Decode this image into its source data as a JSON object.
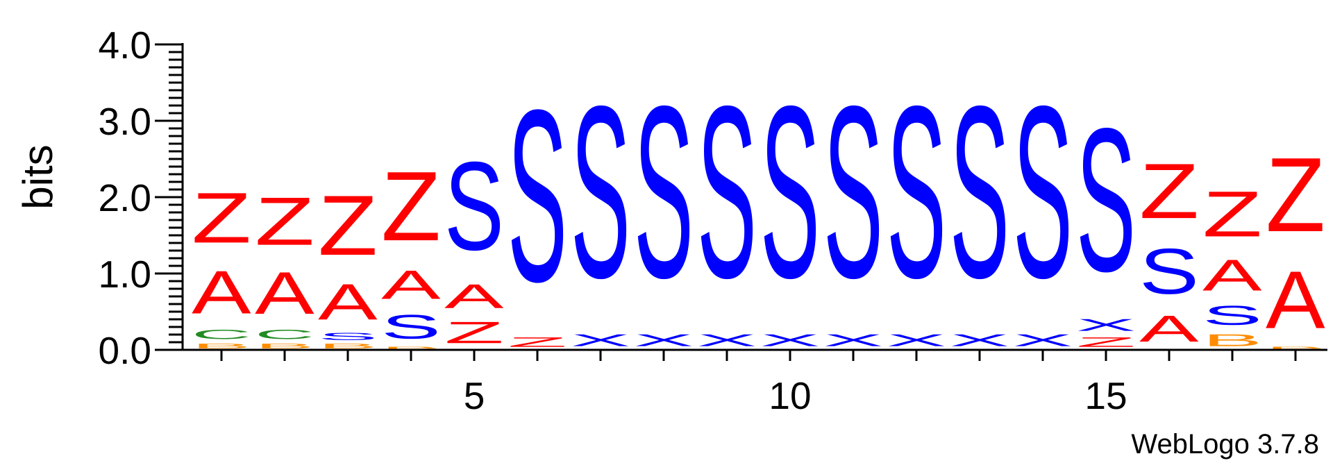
{
  "chart_data": {
    "type": "sequence-logo",
    "ylabel": "bits",
    "ylim": [
      0,
      4.0
    ],
    "yticks": [
      "0.0",
      "1.0",
      "2.0",
      "3.0",
      "4.0"
    ],
    "xticks": [
      "5",
      "10",
      "15"
    ],
    "positions": [
      {
        "x": 1,
        "stack": [
          [
            "B",
            0.1
          ],
          [
            "C",
            0.2
          ],
          [
            "A",
            0.9
          ],
          [
            "Z",
            1.05
          ]
        ]
      },
      {
        "x": 2,
        "stack": [
          [
            "B",
            0.1
          ],
          [
            "C",
            0.2
          ],
          [
            "A",
            0.88
          ],
          [
            "Z",
            1.0
          ]
        ]
      },
      {
        "x": 3,
        "stack": [
          [
            "B",
            0.1
          ],
          [
            "S",
            0.15
          ],
          [
            "A",
            0.75
          ],
          [
            "Z",
            1.25
          ]
        ]
      },
      {
        "x": 4,
        "stack": [
          [
            "B",
            0.05
          ],
          [
            "S",
            0.5
          ],
          [
            "A",
            0.6
          ],
          [
            "Z",
            1.45
          ]
        ]
      },
      {
        "x": 5,
        "stack": [
          [
            "Z",
            0.45
          ],
          [
            "A",
            0.5
          ],
          [
            "S",
            1.85
          ]
        ]
      },
      {
        "x": 6,
        "stack": [
          [
            "Z",
            0.2
          ],
          [
            "S",
            3.6
          ]
        ]
      },
      {
        "x": 7,
        "stack": [
          [
            "X",
            0.25
          ],
          [
            "S",
            3.6
          ]
        ]
      },
      {
        "x": 8,
        "stack": [
          [
            "X",
            0.25
          ],
          [
            "S",
            3.6
          ]
        ]
      },
      {
        "x": 9,
        "stack": [
          [
            "X",
            0.25
          ],
          [
            "S",
            3.6
          ]
        ]
      },
      {
        "x": 10,
        "stack": [
          [
            "X",
            0.25
          ],
          [
            "S",
            3.6
          ]
        ]
      },
      {
        "x": 11,
        "stack": [
          [
            "X",
            0.25
          ],
          [
            "S",
            3.6
          ]
        ]
      },
      {
        "x": 12,
        "stack": [
          [
            "X",
            0.25
          ],
          [
            "S",
            3.6
          ]
        ]
      },
      {
        "x": 13,
        "stack": [
          [
            "X",
            0.25
          ],
          [
            "S",
            3.6
          ]
        ]
      },
      {
        "x": 14,
        "stack": [
          [
            "X",
            0.25
          ],
          [
            "S",
            3.6
          ]
        ]
      },
      {
        "x": 15,
        "stack": [
          [
            "Z",
            0.2
          ],
          [
            "X",
            0.25
          ],
          [
            "S",
            3.0
          ]
        ]
      },
      {
        "x": 16,
        "stack": [
          [
            "A",
            0.55
          ],
          [
            "S",
            0.95
          ],
          [
            "Z",
            1.15
          ]
        ]
      },
      {
        "x": 17,
        "stack": [
          [
            "B",
            0.25
          ],
          [
            "S",
            0.4
          ],
          [
            "A",
            0.65
          ],
          [
            "Z",
            0.95
          ]
        ]
      },
      {
        "x": 18,
        "stack": [
          [
            "B",
            0.05
          ],
          [
            "A",
            1.2
          ],
          [
            "Z",
            1.55
          ]
        ]
      }
    ],
    "colors": {
      "A": "#ff0000",
      "Z": "#ff0000",
      "S": "#0000ff",
      "X": "#0000ff",
      "C": "#228b22",
      "B": "#ff8c00"
    }
  },
  "credit": "WebLogo 3.7.8"
}
